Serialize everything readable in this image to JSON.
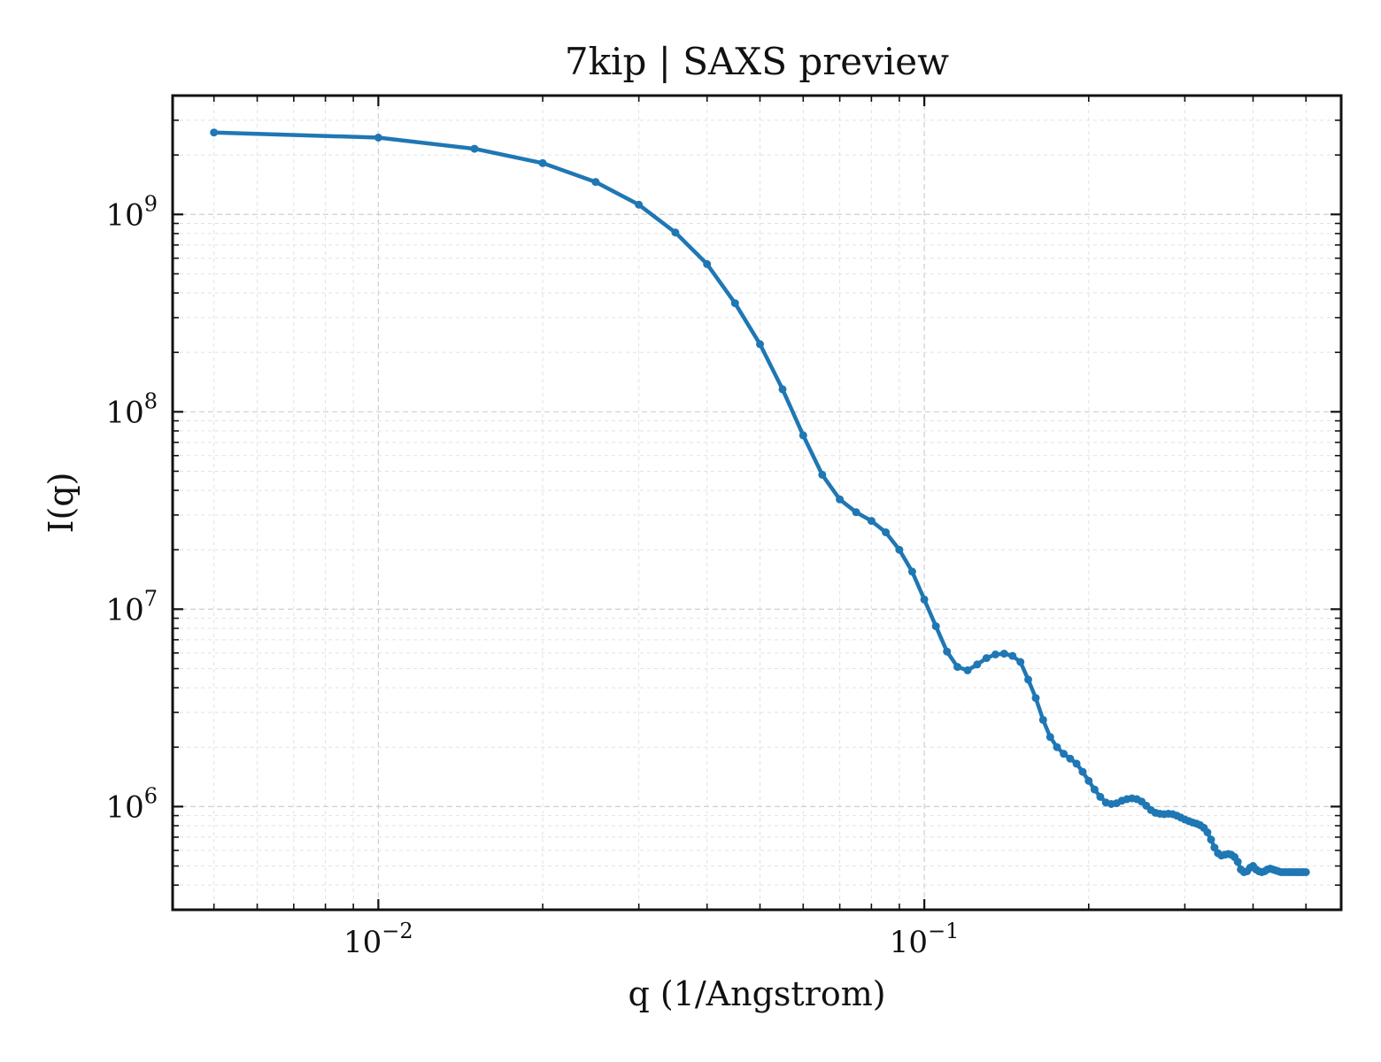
{
  "chart_data": {
    "type": "line",
    "title": "7kip | SAXS preview",
    "xlabel": "q (1/Angstrom)",
    "ylabel": "I(q)",
    "xscale": "log",
    "yscale": "log",
    "xlim": [
      0.0042,
      0.58
    ],
    "ylim": [
      300000,
      4000000000
    ],
    "x_ticks": [
      {
        "value": 0.01,
        "base": "10",
        "exp": "−2"
      },
      {
        "value": 0.1,
        "base": "10",
        "exp": "−1"
      }
    ],
    "y_ticks": [
      {
        "value": 1000000,
        "base": "10",
        "exp": "6"
      },
      {
        "value": 10000000,
        "base": "10",
        "exp": "7"
      },
      {
        "value": 100000000,
        "base": "10",
        "exp": "8"
      },
      {
        "value": 1000000000,
        "base": "10",
        "exp": "9"
      }
    ],
    "grid": true,
    "series": [
      {
        "color": "#1f77b4",
        "marker": "circle",
        "x": [
          0.005,
          0.01,
          0.015,
          0.02,
          0.025,
          0.03,
          0.035,
          0.04,
          0.045,
          0.05,
          0.055,
          0.06,
          0.065,
          0.07,
          0.075,
          0.08,
          0.085,
          0.09,
          0.095,
          0.1,
          0.105,
          0.11,
          0.115,
          0.12,
          0.125,
          0.13,
          0.135,
          0.14,
          0.145,
          0.15,
          0.155,
          0.16,
          0.165,
          0.17,
          0.175,
          0.18,
          0.185,
          0.19,
          0.195,
          0.2,
          0.205,
          0.21,
          0.215,
          0.22,
          0.225,
          0.23,
          0.235,
          0.24,
          0.245,
          0.25,
          0.255,
          0.26,
          0.265,
          0.27,
          0.275,
          0.28,
          0.285,
          0.29,
          0.295,
          0.3,
          0.305,
          0.31,
          0.315,
          0.32,
          0.325,
          0.33,
          0.335,
          0.34,
          0.345,
          0.35,
          0.355,
          0.36,
          0.365,
          0.37,
          0.375,
          0.38,
          0.385,
          0.39,
          0.395,
          0.4,
          0.405,
          0.41,
          0.415,
          0.42,
          0.425,
          0.43,
          0.435,
          0.44,
          0.445,
          0.45,
          0.455,
          0.46,
          0.465,
          0.47,
          0.475,
          0.48,
          0.485,
          0.49,
          0.495,
          0.5
        ],
        "y": [
          2600000000,
          2450000000,
          2150000000,
          1820000000,
          1460000000,
          1120000000,
          810000000,
          560000000,
          355000000,
          220000000,
          130000000,
          76000000,
          48000000,
          36000000,
          31000000,
          28000000,
          24500000,
          20000000,
          15500000,
          11200000,
          8200000,
          6100000,
          5100000,
          4900000,
          5250000,
          5650000,
          5900000,
          5950000,
          5800000,
          5400000,
          4400000,
          3550000,
          2750000,
          2250000,
          2000000,
          1850000,
          1750000,
          1650000,
          1500000,
          1350000,
          1220000,
          1120000,
          1050000,
          1030000,
          1040000,
          1070000,
          1090000,
          1100000,
          1090000,
          1060000,
          1010000,
          960000,
          930000,
          920000,
          915000,
          920000,
          915000,
          900000,
          880000,
          860000,
          845000,
          830000,
          820000,
          805000,
          780000,
          740000,
          680000,
          620000,
          580000,
          565000,
          570000,
          575000,
          570000,
          555000,
          525000,
          480000,
          465000,
          470000,
          490000,
          500000,
          480000,
          470000,
          465000,
          470000,
          480000,
          485000,
          480000,
          475000,
          470000,
          465000,
          465000,
          465000,
          465000,
          465000,
          465000,
          465000,
          465000,
          465000,
          465000,
          465000
        ]
      }
    ]
  }
}
